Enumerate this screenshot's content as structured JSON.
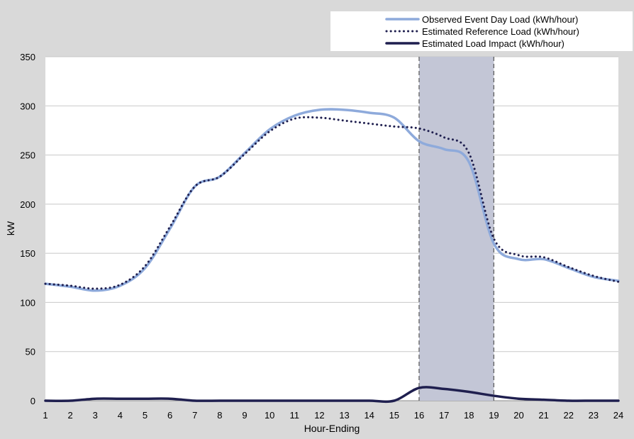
{
  "chart_data": {
    "type": "line",
    "title": "",
    "xlabel": "Hour-Ending",
    "ylabel": "kW",
    "ylim": [
      0,
      350
    ],
    "y_ticks": [
      0,
      50,
      100,
      150,
      200,
      250,
      300,
      350
    ],
    "x_ticks": [
      1,
      2,
      3,
      4,
      5,
      6,
      7,
      8,
      9,
      10,
      11,
      12,
      13,
      14,
      15,
      16,
      17,
      18,
      19,
      20,
      21,
      22,
      23,
      24
    ],
    "xlim": [
      1,
      24
    ],
    "grid": "horizontal",
    "legend_position": "top-right",
    "event_window": {
      "start": 16,
      "end": 19,
      "color": "#c3c6d6",
      "border": "dashed"
    },
    "x": [
      1,
      2,
      3,
      4,
      5,
      6,
      7,
      8,
      9,
      10,
      11,
      12,
      13,
      14,
      15,
      16,
      17,
      18,
      19,
      20,
      21,
      22,
      23,
      24
    ],
    "series": [
      {
        "name": "Observed Event Day Load (kWh/hour)",
        "style": "solid",
        "color": "#8eaadb",
        "values": [
          119,
          116,
          112,
          117,
          135,
          175,
          218,
          228,
          252,
          276,
          290,
          296,
          296,
          293,
          288,
          264,
          256,
          243,
          160,
          144,
          144,
          135,
          126,
          122
        ]
      },
      {
        "name": "Estimated Reference Load (kWh/hour)",
        "style": "dotted",
        "color": "#1f1f4f",
        "values": [
          119,
          117,
          114,
          118,
          137,
          177,
          218,
          228,
          251,
          274,
          287,
          288,
          285,
          282,
          279,
          277,
          268,
          252,
          165,
          148,
          146,
          136,
          127,
          121
        ]
      },
      {
        "name": "Estimated Load Impact (kWh/hour)",
        "style": "solid",
        "color": "#1f1f4f",
        "values": [
          0,
          0,
          2,
          2,
          2,
          2,
          0,
          0,
          0,
          0,
          0,
          0,
          0,
          0,
          0,
          13,
          12,
          9,
          5,
          2,
          1,
          0,
          0,
          0
        ]
      }
    ]
  }
}
